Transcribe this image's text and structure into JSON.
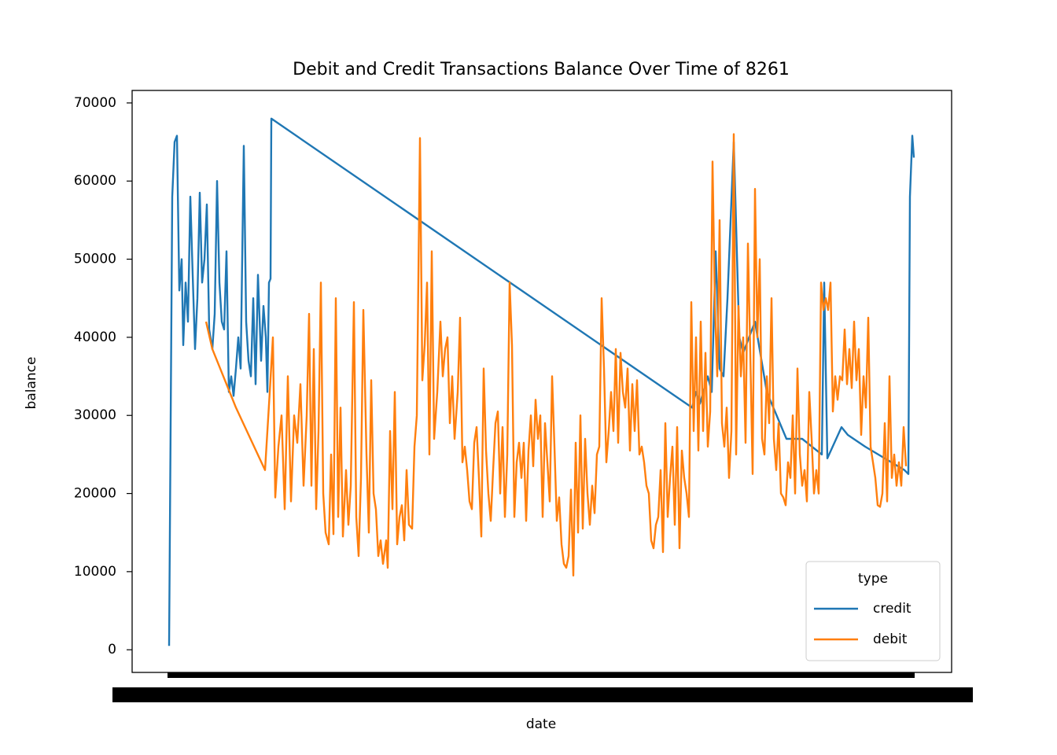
{
  "chart_data": {
    "type": "line",
    "title": "Debit and Credit Transactions Balance Over Time of 8261",
    "x_label": "date",
    "y_label": "balance",
    "xlim": [
      -47,
      995
    ],
    "ylim": [
      -2900,
      71600
    ],
    "yticks": [
      0,
      10000,
      20000,
      30000,
      40000,
      50000,
      60000,
      70000
    ],
    "legend_title": "type",
    "legend": "lower right",
    "series": [
      {
        "name": "credit",
        "color": "#1f77b4",
        "x": [
          0,
          4,
          7,
          10,
          13,
          16,
          18,
          21,
          24,
          27,
          30,
          33,
          36,
          39,
          42,
          45,
          48,
          51,
          55,
          58,
          61,
          64,
          67,
          70,
          73,
          76,
          79,
          82,
          85,
          88,
          91,
          95,
          98,
          101,
          104,
          107,
          110,
          113,
          117,
          120,
          123,
          125,
          127,
          129,
          130,
          665,
          670,
          675,
          685,
          690,
          695,
          700,
          705,
          710,
          718,
          725,
          730,
          745,
          760,
          785,
          805,
          830,
          833,
          837,
          855,
          863,
          885,
          935,
          940,
          942,
          945,
          947
        ],
        "values": [
          500,
          58000,
          65000,
          65800,
          46000,
          50000,
          39000,
          47000,
          42000,
          58000,
          48000,
          38500,
          45000,
          58500,
          47000,
          50000,
          57000,
          41000,
          38500,
          43000,
          60000,
          47000,
          42000,
          41000,
          51000,
          33000,
          35000,
          32500,
          36000,
          40000,
          36000,
          64500,
          42000,
          37000,
          35000,
          45000,
          34000,
          48000,
          37000,
          44000,
          40000,
          33000,
          47000,
          47500,
          68000,
          31000,
          33000,
          31500,
          35000,
          33000,
          51000,
          36000,
          35000,
          45000,
          65000,
          40000,
          38000,
          42000,
          33000,
          27000,
          27000,
          25000,
          47000,
          24500,
          28500,
          27500,
          26000,
          23000,
          22500,
          58000,
          65800,
          63000
        ]
      },
      {
        "name": "debit",
        "color": "#ff7f0e",
        "x": [
          47,
          55,
          85,
          122,
          128,
          132,
          135,
          139,
          143,
          147,
          151,
          155,
          159,
          163,
          167,
          171,
          175,
          178,
          181,
          184,
          187,
          190,
          193,
          196,
          199,
          203,
          206,
          209,
          212,
          215,
          218,
          221,
          225,
          228,
          231,
          235,
          238,
          241,
          244,
          247,
          251,
          254,
          257,
          260,
          263,
          266,
          269,
          272,
          276,
          278,
          281,
          284,
          287,
          290,
          293,
          296,
          299,
          302,
          305,
          309,
          312,
          315,
          319,
          322,
          325,
          328,
          331,
          334,
          337,
          341,
          345,
          348,
          351,
          354,
          357,
          360,
          363,
          367,
          370,
          373,
          376,
          379,
          382,
          385,
          388,
          391,
          394,
          397,
          400,
          403,
          406,
          409,
          412,
          415,
          418,
          421,
          424,
          427,
          430,
          433,
          436,
          439,
          442,
          445,
          448,
          451,
          454,
          457,
          460,
          463,
          466,
          469,
          472,
          475,
          478,
          481,
          484,
          487,
          490,
          493,
          496,
          499,
          502,
          505,
          508,
          511,
          514,
          517,
          520,
          523,
          526,
          529,
          532,
          535,
          538,
          541,
          544,
          547,
          550,
          553,
          556,
          559,
          562,
          565,
          568,
          571,
          574,
          577,
          580,
          583,
          586,
          589,
          592,
          595,
          598,
          601,
          604,
          607,
          610,
          613,
          616,
          619,
          622,
          625,
          628,
          631,
          634,
          637,
          640,
          643,
          646,
          649,
          652,
          655,
          658,
          661,
          664,
          667,
          670,
          673,
          676,
          679,
          682,
          685,
          688,
          691,
          694,
          697,
          700,
          703,
          706,
          709,
          712,
          715,
          718,
          721,
          724,
          727,
          730,
          733,
          736,
          739,
          742,
          745,
          748,
          751,
          754,
          757,
          760,
          763,
          766,
          769,
          772,
          775,
          778,
          781,
          784,
          787,
          790,
          793,
          796,
          799,
          802,
          805,
          808,
          811,
          814,
          817,
          820,
          823,
          826,
          829,
          832,
          835,
          838,
          841,
          844,
          847,
          850,
          853,
          856,
          859,
          862,
          865,
          868,
          871,
          874,
          877,
          880,
          883,
          886,
          889,
          892,
          895,
          898,
          901,
          904,
          907,
          910,
          913,
          916,
          919,
          922,
          925,
          928,
          931,
          934,
          937
        ],
        "values": [
          42000,
          38500,
          31000,
          23000,
          33000,
          40000,
          19500,
          26000,
          30000,
          18000,
          35000,
          19000,
          30000,
          26500,
          34000,
          21000,
          30000,
          43000,
          21000,
          38500,
          18000,
          28000,
          47000,
          20000,
          15000,
          13500,
          25000,
          14800,
          45000,
          17000,
          31000,
          14500,
          23000,
          16000,
          21000,
          44500,
          17000,
          12000,
          22000,
          43500,
          25000,
          15000,
          34500,
          20000,
          18000,
          12000,
          14000,
          11000,
          14000,
          10500,
          28000,
          18000,
          33000,
          13500,
          17000,
          18500,
          14000,
          23000,
          16000,
          15500,
          26000,
          30000,
          65500,
          34500,
          39000,
          47000,
          25000,
          51000,
          27000,
          33000,
          42000,
          35000,
          38500,
          40000,
          29000,
          35000,
          27000,
          33000,
          42500,
          24000,
          26000,
          23000,
          19000,
          18000,
          26500,
          28500,
          22000,
          14500,
          36000,
          25500,
          20000,
          16500,
          23000,
          29000,
          30500,
          20000,
          28500,
          17000,
          25000,
          47000,
          39000,
          17000,
          24000,
          26500,
          22000,
          26500,
          16500,
          25500,
          30000,
          23500,
          32000,
          27000,
          30000,
          17000,
          29000,
          24000,
          19000,
          35000,
          26000,
          16500,
          19500,
          13500,
          11000,
          10500,
          12000,
          20500,
          9500,
          26500,
          15000,
          30000,
          15500,
          27000,
          20000,
          16000,
          21000,
          17500,
          25000,
          26000,
          45000,
          36000,
          24000,
          28000,
          33000,
          28000,
          38500,
          26500,
          38000,
          33000,
          31000,
          36000,
          25500,
          34000,
          28000,
          34500,
          25000,
          26000,
          24000,
          21000,
          20000,
          14000,
          13000,
          16000,
          17000,
          23000,
          12500,
          29000,
          17000,
          22000,
          26000,
          16000,
          28500,
          13000,
          25500,
          22000,
          20000,
          17000,
          44500,
          28000,
          40000,
          25500,
          42000,
          28000,
          38000,
          26000,
          30500,
          62500,
          44000,
          35000,
          55000,
          29000,
          26000,
          31000,
          22000,
          28000,
          66000,
          25000,
          44000,
          35000,
          40000,
          26500,
          52000,
          38000,
          22500,
          59000,
          40000,
          50000,
          27000,
          25000,
          35000,
          29000,
          45000,
          27000,
          23000,
          29000,
          20000,
          19500,
          18500,
          24000,
          22000,
          30000,
          20000,
          36000,
          25000,
          21000,
          23000,
          19000,
          33000,
          27000,
          20000,
          23000,
          20000,
          47000,
          43500,
          45000,
          43500,
          47000,
          30500,
          35000,
          32000,
          35000,
          34500,
          41000,
          34000,
          38500,
          33500,
          42000,
          34500,
          38500,
          27500,
          35000,
          31000,
          42500,
          26000,
          24000,
          22000,
          18500,
          18300,
          20000,
          29000,
          19000,
          35000,
          22000,
          25000,
          21000,
          24000,
          21000,
          28500,
          23500
        ]
      }
    ]
  }
}
